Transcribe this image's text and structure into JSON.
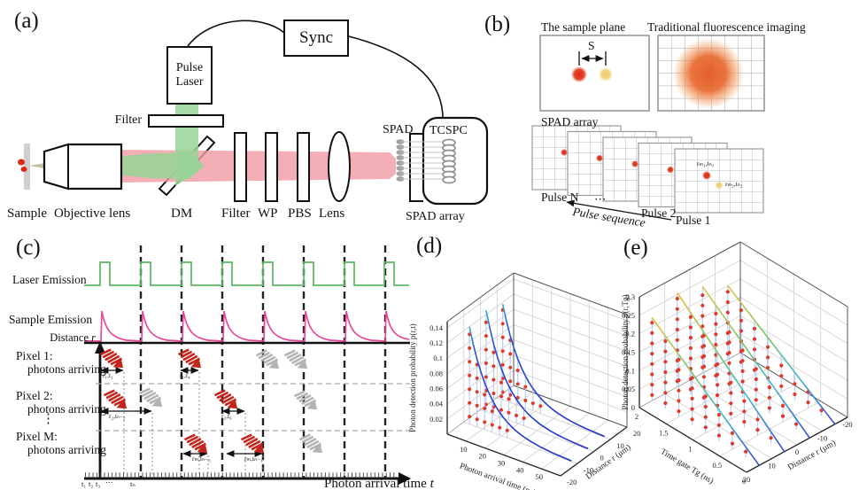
{
  "panels": {
    "a": {
      "label": "(a)",
      "sync": "Sync",
      "pulse_laser": "Pulse Laser",
      "filter_top": "Filter",
      "sample": "Sample",
      "objective": "Objective lens",
      "dm": "DM",
      "filter": "Filter",
      "wp": "WP",
      "pbs": "PBS",
      "lens": "Lens",
      "spad": "SPAD",
      "tcspc": "TCSPC",
      "spad_array": "SPAD array"
    },
    "b": {
      "label": "(b)",
      "sample_plane": "The sample plane",
      "traditional": "Traditional fluorescence imaging",
      "separation": "S",
      "spad_array": "SPAD array",
      "pulse_n": "Pulse N",
      "ellipsis": "⋯",
      "pulse_2": "Pulse 2",
      "pulse_1": "Pulse 1",
      "pulse_sequence": "Pulse sequence",
      "dot1": "rₘ₁,tₙ₁",
      "dot2": "rₘ₂,tₙ₂"
    },
    "c": {
      "label": "(c)",
      "rows": {
        "laser": "Laser Emission",
        "sample": "Sample Emission",
        "distance": "Distance ",
        "distance_var": "r",
        "pixel1": "Pixel 1:",
        "pixel1_sub": "photons arriving",
        "pixel2": "Pixel 2:",
        "pixel2_sub": "photons arriving",
        "vdots": "⋮",
        "pixelM": "Pixel M:",
        "pixelM_sub": "photons arriving"
      },
      "annotations": {
        "p1a": "r₁,t₁",
        "p1b": "r₁,t₄",
        "p2a": "r₂,tₙ₋₂",
        "p2b": "r₂,t₆",
        "pMa": "rₘ,tₙ₋₃",
        "pMb": "rₘ,tₙ₋₁"
      },
      "time_ticks": [
        "t₁",
        "t₂",
        "t₃",
        "⋯",
        "tₙ"
      ],
      "xaxis": "Photon arrival time ",
      "xaxis_var": "t"
    },
    "d": {
      "label": "(d)"
    },
    "e": {
      "label": "(e)"
    }
  },
  "chart_data": [
    {
      "type": "scatter",
      "subtype": "3d-stem",
      "panel": "d",
      "zlabel": "Photon detection probability p(r,t)",
      "xlabel": "Photon arrival time (ns)",
      "ylabel": "Distance r (μm)",
      "x_ticks": [
        10,
        20,
        30,
        40,
        50
      ],
      "x_range": [
        0,
        60
      ],
      "y_ticks": [
        -20,
        -10,
        0,
        10,
        20
      ],
      "y_range": [
        -20,
        20
      ],
      "z_ticks": [
        0.02,
        0.04,
        0.06,
        0.08,
        0.1,
        0.12,
        0.14
      ],
      "z_range": [
        0,
        0.148
      ],
      "grid": true,
      "series": [
        {
          "r": 10,
          "peak": 0.126,
          "tau": 11,
          "t0": 3,
          "stem_x": [
            3,
            7,
            11,
            15,
            19,
            23
          ]
        },
        {
          "r": 0,
          "peak": 0.134,
          "tau": 11,
          "t0": 3,
          "stem_x": [
            3,
            7,
            11,
            15,
            19,
            23
          ]
        },
        {
          "r": -10,
          "peak": 0.128,
          "tau": 11,
          "t0": 3,
          "stem_x": [
            3,
            7,
            11,
            15,
            19,
            23
          ]
        }
      ],
      "dot_dz": 0.018,
      "dot_color": "#e0392b",
      "stem_color": "#b9c9ef",
      "line_gradient": [
        [
          0,
          "#3fc6c6"
        ],
        [
          0.15,
          "#2a55dd"
        ],
        [
          1,
          "#2433cc"
        ]
      ]
    },
    {
      "type": "scatter",
      "subtype": "3d-stem",
      "panel": "e",
      "zlabel": "Photon detection probability p(r,Tg)",
      "xlabel": "Time gate Tg (ns)",
      "ylabel": "Distance r (μm)",
      "x_ticks": [
        2,
        1.5,
        1,
        0.5,
        0
      ],
      "x_range": [
        2,
        0
      ],
      "y_ticks": [
        20,
        10,
        0,
        -10,
        -20
      ],
      "y_range": [
        20,
        -20
      ],
      "z_ticks": [
        0,
        0.05,
        0.1,
        0.15,
        0.2,
        0.25,
        0.3
      ],
      "z_range": [
        0,
        0.3
      ],
      "grid": true,
      "series": [
        {
          "r": -15,
          "peak": 0.2,
          "stem_x": [
            2,
            1.75,
            1.5,
            1.25,
            1,
            0.75,
            0.5,
            0.25
          ]
        },
        {
          "r": -5,
          "peak": 0.235,
          "stem_x": [
            2,
            1.75,
            1.5,
            1.25,
            1,
            0.75,
            0.5,
            0.25
          ]
        },
        {
          "r": 5,
          "peak": 0.255,
          "stem_x": [
            2,
            1.75,
            1.5,
            1.25,
            1,
            0.75,
            0.5,
            0.25
          ]
        },
        {
          "r": 15,
          "peak": 0.225,
          "stem_x": [
            2,
            1.75,
            1.5,
            1.25,
            1,
            0.75,
            0.5,
            0.25
          ]
        }
      ],
      "dot_dz": 0.028,
      "dot_color": "#e0392b",
      "stem_color": "#b9c9ef",
      "line_gradient": [
        [
          0,
          "#e6c23c"
        ],
        [
          0.35,
          "#7cc465"
        ],
        [
          0.65,
          "#3fb9c9"
        ],
        [
          1,
          "#3348d2"
        ]
      ]
    }
  ]
}
